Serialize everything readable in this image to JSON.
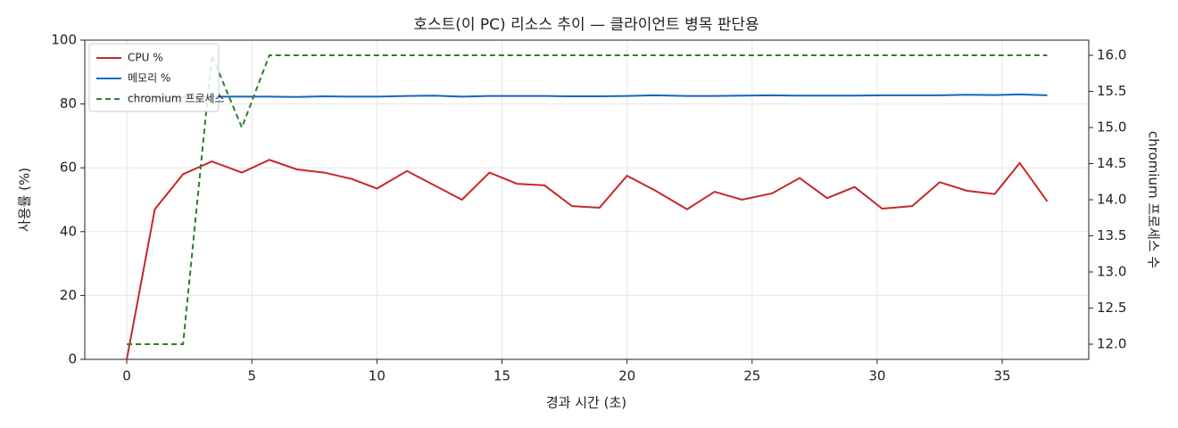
{
  "chart_data": {
    "type": "line",
    "title": "호스트(이 PC) 리소스 추이 — 클라이언트 병목 판단용",
    "x_label": "경과 시간 (초)",
    "y_label": "사용률 (%)",
    "y2_label": "chromium 프로세스 수",
    "x": [
      0,
      1.12,
      2.25,
      3.4,
      4.6,
      5.7,
      6.8,
      7.9,
      9.0,
      10.0,
      11.2,
      12.3,
      13.4,
      14.5,
      15.6,
      16.7,
      17.8,
      18.9,
      20.0,
      21.1,
      22.4,
      23.5,
      24.6,
      25.8,
      26.9,
      28.0,
      29.1,
      30.2,
      31.4,
      32.5,
      33.6,
      34.7,
      35.7,
      36.8
    ],
    "series": [
      {
        "name": "CPU %",
        "color": "#c62828",
        "values": [
          0,
          47,
          58,
          62,
          58.5,
          62.5,
          59.5,
          58.5,
          56.5,
          53.5,
          59,
          54.5,
          50,
          58.5,
          55,
          54.5,
          48,
          47.5,
          57.5,
          53,
          47,
          52.5,
          50,
          52,
          56.8,
          50.5,
          54,
          47.2,
          48,
          55.5,
          52.8,
          51.8,
          61.5,
          49.5
        ]
      },
      {
        "name": "메모리 %",
        "color": "#1565c0",
        "values": [
          82.2,
          82.2,
          82.2,
          82.3,
          82.3,
          82.3,
          82.2,
          82.4,
          82.3,
          82.3,
          82.5,
          82.6,
          82.3,
          82.5,
          82.5,
          82.5,
          82.4,
          82.4,
          82.5,
          82.7,
          82.5,
          82.5,
          82.6,
          82.7,
          82.6,
          82.6,
          82.6,
          82.7,
          82.7,
          82.7,
          82.9,
          82.8,
          83.0,
          82.7
        ]
      },
      {
        "name": "chromium 프로세스",
        "color": "#2e7d32",
        "linestyle": "--",
        "axis": "y2",
        "values": [
          12,
          12,
          12,
          16,
          15,
          16,
          16,
          16,
          16,
          16,
          16,
          16,
          16,
          16,
          16,
          16,
          16,
          16,
          16,
          16,
          16,
          16,
          16,
          16,
          16,
          16,
          16,
          16,
          16,
          16,
          16,
          16,
          16,
          16
        ]
      }
    ],
    "xlim": [
      -1.68,
      38.46
    ],
    "xticks": [
      0,
      5,
      10,
      15,
      20,
      25,
      30,
      35
    ],
    "ylim": [
      0,
      100
    ],
    "yticks": [
      0,
      20,
      40,
      60,
      80,
      100
    ],
    "y2lim": [
      11.79,
      16.21
    ],
    "y2ticks": [
      {
        "value": 12,
        "label": "12.0"
      },
      {
        "value": 12.5,
        "label": "12.5"
      },
      {
        "value": 13,
        "label": "13.0"
      },
      {
        "value": 13.5,
        "label": "13.5"
      },
      {
        "value": 14,
        "label": "14.0"
      },
      {
        "value": 14.5,
        "label": "14.5"
      },
      {
        "value": 15,
        "label": "15.0"
      },
      {
        "value": 15.5,
        "label": "15.5"
      },
      {
        "value": 16,
        "label": "16.0"
      }
    ],
    "grid": true,
    "legend": "upper-left"
  }
}
